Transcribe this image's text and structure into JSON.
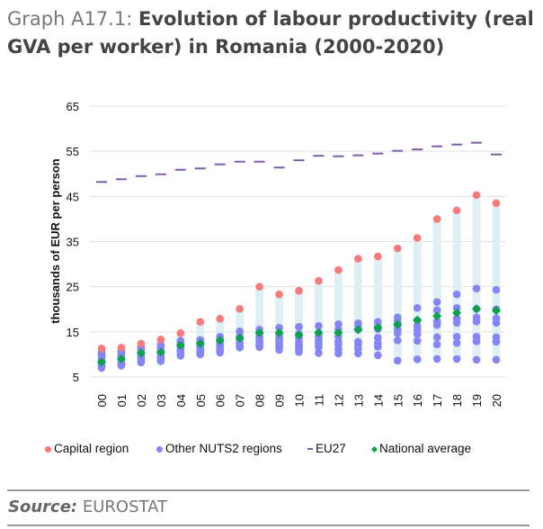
{
  "title": {
    "label": "Graph A17.1:",
    "text": "Evolution of labour productivity (real GVA per worker) in Romania (2000-2020)"
  },
  "source": {
    "label": "Source:",
    "text": "EUROSTAT"
  },
  "colors": {
    "capital": "#f87a7a",
    "other": "#8585f5",
    "eu27": "#7b5ea7",
    "national": "#0aa24a",
    "range": "#dff0f4",
    "grid": "#e2e2e2"
  },
  "chart_data": {
    "type": "scatter",
    "ylabel": "thousands of EUR per  person",
    "ylim": [
      5,
      65
    ],
    "yticks": [
      5,
      15,
      25,
      35,
      45,
      55,
      65
    ],
    "grid": true,
    "legend_placement": "bottom",
    "categories": [
      "00",
      "01",
      "02",
      "03",
      "04",
      "05",
      "06",
      "07",
      "08",
      "09",
      "10",
      "11",
      "12",
      "13",
      "14",
      "15",
      "16",
      "17",
      "18",
      "19",
      "20"
    ],
    "series": [
      {
        "name": "Capital region",
        "marker": "circle",
        "values": [
          11.3,
          11.5,
          12.4,
          13.3,
          14.7,
          17.2,
          17.9,
          20.1,
          25.0,
          23.3,
          24.1,
          26.3,
          28.7,
          31.2,
          31.7,
          33.5,
          35.8,
          40.0,
          41.9,
          45.3,
          43.5
        ]
      },
      {
        "name": "Other NUTS2 regions",
        "marker": "circle",
        "values": [
          [
            10.5,
            9.9,
            9.3,
            8.7,
            8.1,
            7.5,
            7.0
          ],
          [
            10.8,
            10.2,
            9.6,
            9.0,
            8.5,
            8.0,
            7.5
          ],
          [
            11.6,
            11.0,
            10.4,
            9.8,
            9.2,
            8.7,
            8.2
          ],
          [
            12.1,
            11.4,
            10.7,
            10.0,
            9.4,
            8.9,
            8.5
          ],
          [
            13.0,
            12.4,
            11.8,
            11.2,
            10.7,
            10.2,
            9.7
          ],
          [
            13.2,
            12.6,
            12.0,
            11.4,
            10.9,
            10.5,
            10.0
          ],
          [
            13.9,
            13.2,
            12.5,
            12.0,
            11.5,
            11.0,
            10.4
          ],
          [
            15.1,
            14.0,
            13.2,
            12.6,
            12.2,
            11.9,
            11.5
          ],
          [
            15.5,
            14.6,
            13.8,
            13.0,
            12.5,
            12.1,
            11.6
          ],
          [
            15.9,
            14.3,
            13.5,
            12.8,
            12.2,
            11.7,
            11.0
          ],
          [
            16.1,
            14.5,
            13.7,
            12.7,
            12.0,
            11.3,
            10.5
          ],
          [
            16.3,
            14.8,
            13.9,
            13.1,
            12.3,
            11.6,
            10.3
          ],
          [
            16.7,
            15.5,
            14.0,
            12.9,
            12.1,
            11.2,
            10.2
          ],
          [
            16.9,
            16.3,
            15.5,
            12.8,
            12.2,
            11.3,
            10.2
          ],
          [
            17.2,
            16.2,
            15.6,
            13.7,
            12.5,
            11.7,
            9.8
          ],
          [
            18.2,
            17.3,
            16.4,
            15.5,
            14.7,
            13.1,
            8.6
          ],
          [
            20.3,
            17.5,
            16.3,
            15.5,
            14.5,
            13.0,
            8.9
          ],
          [
            21.6,
            19.8,
            17.3,
            16.5,
            13.8,
            12.2,
            9.0
          ],
          [
            23.3,
            20.3,
            18.0,
            17.0,
            13.9,
            12.5,
            9.0
          ],
          [
            24.6,
            20.1,
            18.2,
            17.3,
            13.9,
            12.9,
            8.8
          ],
          [
            24.3,
            20.0,
            18.0,
            17.0,
            13.8,
            12.8,
            8.8
          ]
        ]
      },
      {
        "name": "EU27",
        "marker": "dash",
        "values": [
          48.2,
          48.8,
          49.5,
          49.9,
          50.9,
          51.2,
          52.1,
          52.7,
          52.7,
          51.4,
          53.0,
          54.0,
          53.9,
          54.1,
          54.5,
          55.1,
          55.4,
          56.1,
          56.5,
          56.9,
          54.3
        ]
      },
      {
        "name": "National average",
        "marker": "diamond",
        "values": [
          8.3,
          9.0,
          10.3,
          10.5,
          12.0,
          12.4,
          13.1,
          13.6,
          14.8,
          14.8,
          14.3,
          14.8,
          14.8,
          15.5,
          15.9,
          16.6,
          17.6,
          18.5,
          19.2,
          20.1,
          19.7
        ]
      }
    ]
  }
}
